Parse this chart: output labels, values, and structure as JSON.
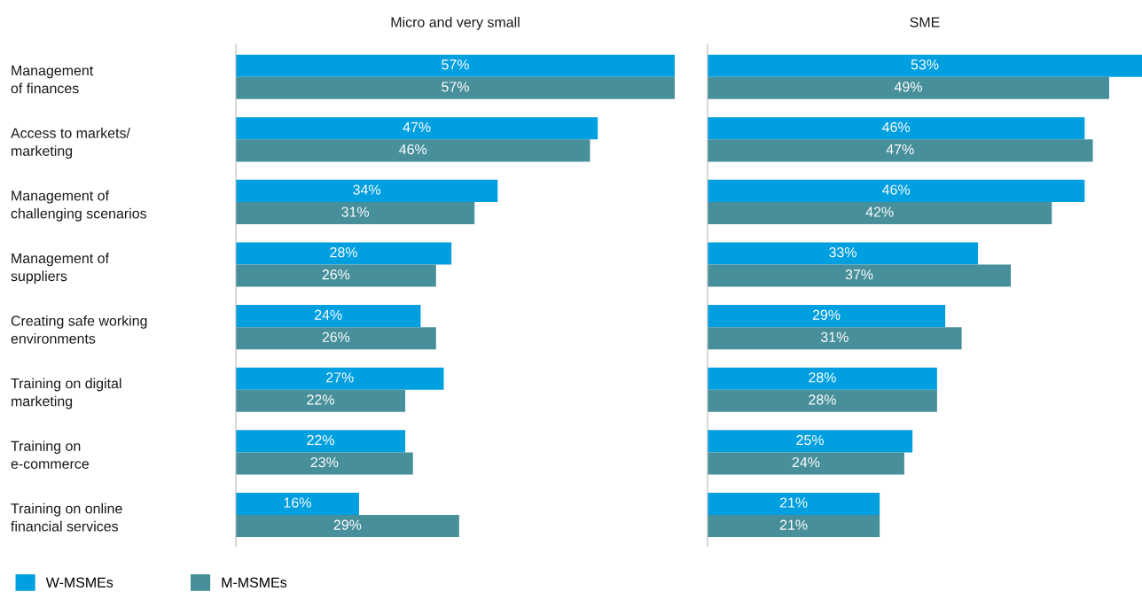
{
  "chart_data": [
    {
      "type": "bar",
      "orientation": "horizontal",
      "title": "Micro and very small",
      "categories": [
        "Management\nof finances",
        "Access to markets/\nmarketing",
        "Management of\nchallenging scenarios",
        "Management of\nsuppliers",
        "Creating safe working\nenvironments",
        "Training on digital\nmarketing",
        "Training on\ne-commerce",
        "Training on online\nfinancial services"
      ],
      "series": [
        {
          "name": "W-MSMEs",
          "color": "#009fe0",
          "values": [
            57,
            47,
            34,
            28,
            24,
            27,
            22,
            16
          ],
          "value_labels": [
            "57%",
            "47%",
            "34%",
            "28%",
            "24%",
            "27%",
            "22%",
            "16%"
          ]
        },
        {
          "name": "M-MSMEs",
          "color": "#478f9a",
          "values": [
            57,
            46,
            31,
            26,
            26,
            22,
            23,
            29
          ],
          "value_labels": [
            "57%",
            "46%",
            "31%",
            "26%",
            "26%",
            "22%",
            "23%",
            "29%"
          ]
        }
      ],
      "legend": "bottom"
    },
    {
      "type": "bar",
      "orientation": "horizontal",
      "title": "SME",
      "categories": [
        null,
        null,
        null,
        null,
        null,
        null,
        null,
        null
      ],
      "series": [
        {
          "color": "#009fe0",
          "values": [
            53,
            46,
            46,
            33,
            29,
            28,
            25,
            21
          ],
          "value_labels": [
            "53%",
            "46%",
            "46%",
            "33%",
            "29%",
            "28%",
            "25%",
            "21%"
          ]
        },
        {
          "color": "#478f9a",
          "values": [
            49,
            47,
            42,
            37,
            31,
            28,
            24,
            21
          ],
          "value_labels": [
            "49%",
            "47%",
            "42%",
            "37%",
            "31%",
            "28%",
            "24%",
            "21%"
          ]
        }
      ]
    }
  ]
}
